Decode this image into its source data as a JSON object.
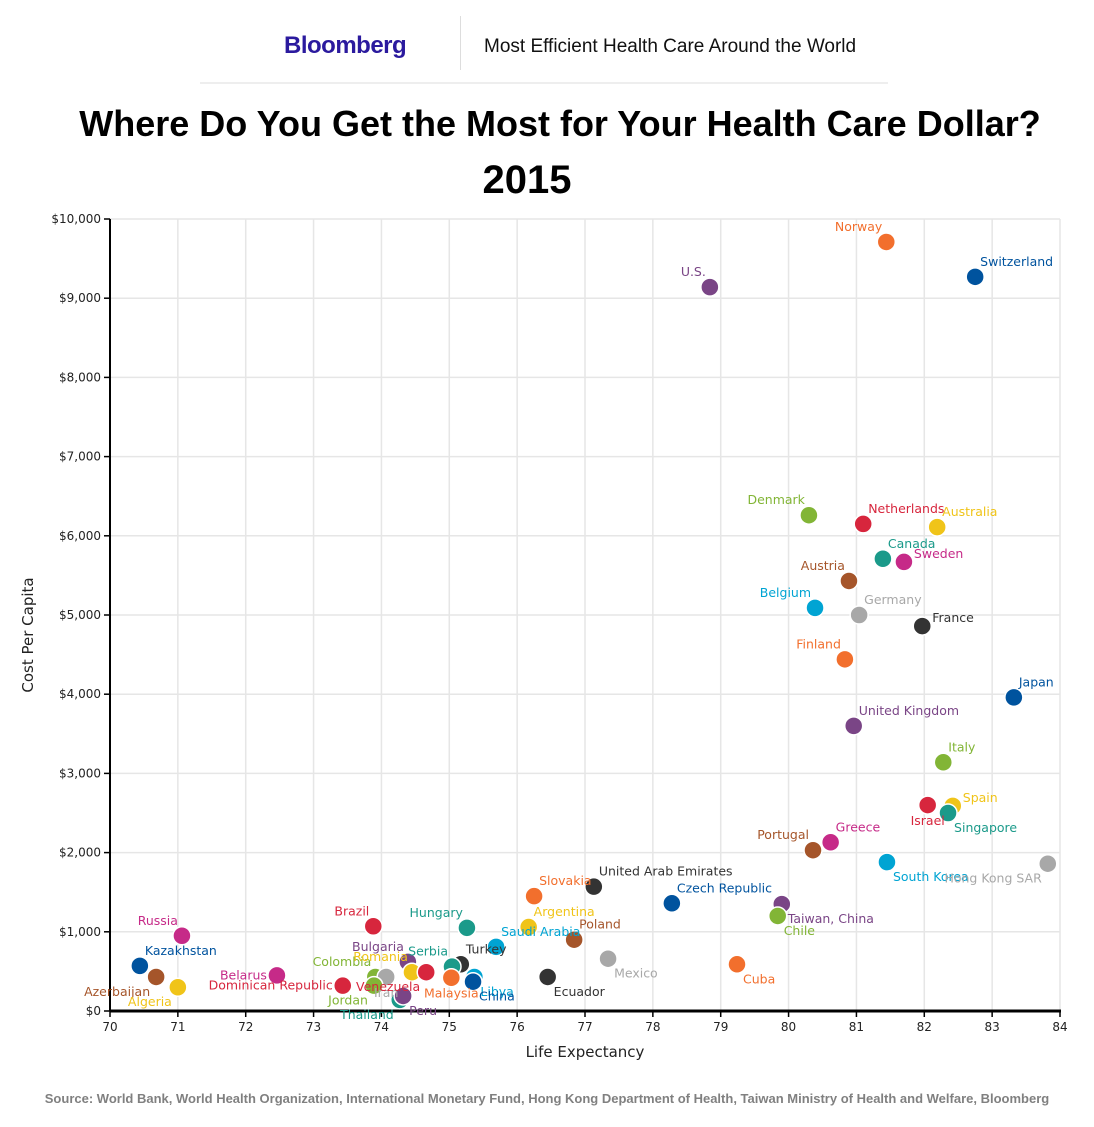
{
  "header": {
    "brand": "Bloomberg",
    "subtitle": "Most Efficient Health Care Around the World"
  },
  "source": "Source: World Bank, World Health Organization, International Monetary Fund, Hong Kong Department of Health, Taiwan Ministry of Health and Welfare, Bloomberg",
  "chart_data": {
    "type": "scatter",
    "title": "Where Do You Get the Most for Your Health Care Dollar?",
    "subtitle": "2015",
    "xlabel": "Life Expectancy",
    "ylabel": "Cost Per Capita",
    "xlim": [
      70,
      84
    ],
    "ylim": [
      0,
      10000
    ],
    "x_ticks": [
      70,
      71,
      72,
      73,
      74,
      75,
      76,
      77,
      78,
      79,
      80,
      81,
      82,
      83,
      84
    ],
    "y_ticks": [
      0,
      1000,
      2000,
      3000,
      4000,
      5000,
      6000,
      7000,
      8000,
      9000,
      10000
    ],
    "y_tick_labels": [
      "$0",
      "$1,000",
      "$2,000",
      "$3,000",
      "$4,000",
      "$5,000",
      "$6,000",
      "$7,000",
      "$8,000",
      "$9,000",
      "$10,000"
    ],
    "grid": true,
    "legend": "none",
    "points": [
      {
        "name": "U.S.",
        "x": 78.84,
        "y": 9140,
        "color": "#7a4586",
        "label_pos": "top-left"
      },
      {
        "name": "Norway",
        "x": 81.44,
        "y": 9710,
        "color": "#f26f2d",
        "label_pos": "top-left"
      },
      {
        "name": "Switzerland",
        "x": 82.75,
        "y": 9270,
        "color": "#00539e",
        "label_pos": "top-right"
      },
      {
        "name": "Denmark",
        "x": 80.3,
        "y": 6260,
        "color": "#82b536",
        "label_pos": "top-left"
      },
      {
        "name": "Netherlands",
        "x": 81.1,
        "y": 6150,
        "color": "#d7263d",
        "label_pos": "top-right"
      },
      {
        "name": "Australia",
        "x": 82.19,
        "y": 6110,
        "color": "#f0c419",
        "label_pos": "top-right"
      },
      {
        "name": "Canada",
        "x": 81.39,
        "y": 5710,
        "color": "#1b9a8a",
        "label_pos": "top-right"
      },
      {
        "name": "Sweden",
        "x": 81.7,
        "y": 5670,
        "color": "#c62a88",
        "label_pos": "right"
      },
      {
        "name": "Austria",
        "x": 80.89,
        "y": 5430,
        "color": "#a5552a",
        "label_pos": "top-left"
      },
      {
        "name": "Belgium",
        "x": 80.39,
        "y": 5090,
        "color": "#00a4d3",
        "label_pos": "top-left"
      },
      {
        "name": "Germany",
        "x": 81.04,
        "y": 5000,
        "color": "#a8a8a8",
        "label_pos": "top-right"
      },
      {
        "name": "France",
        "x": 81.97,
        "y": 4860,
        "color": "#333333",
        "label_pos": "right"
      },
      {
        "name": "Finland",
        "x": 80.83,
        "y": 4440,
        "color": "#f26f2d",
        "label_pos": "top-left"
      },
      {
        "name": "Japan",
        "x": 83.32,
        "y": 3960,
        "color": "#00539e",
        "label_pos": "top-right"
      },
      {
        "name": "United Kingdom",
        "x": 80.96,
        "y": 3600,
        "color": "#7a4586",
        "label_pos": "top-right"
      },
      {
        "name": "Italy",
        "x": 82.28,
        "y": 3140,
        "color": "#82b536",
        "label_pos": "top-right"
      },
      {
        "name": "Spain",
        "x": 82.42,
        "y": 2590,
        "color": "#f0c419",
        "label_pos": "right"
      },
      {
        "name": "Israel",
        "x": 82.05,
        "y": 2600,
        "color": "#d7263d",
        "label_pos": "bottom"
      },
      {
        "name": "Singapore",
        "x": 82.35,
        "y": 2500,
        "color": "#1b9a8a",
        "label_pos": "bottom-right"
      },
      {
        "name": "Greece",
        "x": 80.62,
        "y": 2130,
        "color": "#c62a88",
        "label_pos": "top-right"
      },
      {
        "name": "Portugal",
        "x": 80.36,
        "y": 2030,
        "color": "#a5552a",
        "label_pos": "top-left"
      },
      {
        "name": "South Korea",
        "x": 81.45,
        "y": 1880,
        "color": "#00a4d3",
        "label_pos": "bottom-right"
      },
      {
        "name": "Hong Kong SAR",
        "x": 83.82,
        "y": 1860,
        "color": "#a8a8a8",
        "label_pos": "bottom-left"
      },
      {
        "name": "United Arab Emirates",
        "x": 77.13,
        "y": 1570,
        "color": "#333333",
        "label_pos": "top-right"
      },
      {
        "name": "Slovakia",
        "x": 76.25,
        "y": 1450,
        "color": "#f26f2d",
        "label_pos": "top-right"
      },
      {
        "name": "Czech Republic",
        "x": 78.28,
        "y": 1360,
        "color": "#00539e",
        "label_pos": "top-right"
      },
      {
        "name": "Taiwan, China",
        "x": 79.9,
        "y": 1350,
        "color": "#7a4586",
        "label_pos": "bottom-right"
      },
      {
        "name": "Chile",
        "x": 79.84,
        "y": 1200,
        "color": "#82b536",
        "label_pos": "bottom-right"
      },
      {
        "name": "Argentina",
        "x": 76.17,
        "y": 1060,
        "color": "#f0c419",
        "label_pos": "top-right"
      },
      {
        "name": "Hungary",
        "x": 75.26,
        "y": 1050,
        "color": "#1b9a8a",
        "label_pos": "top-left"
      },
      {
        "name": "Brazil",
        "x": 73.88,
        "y": 1070,
        "color": "#d7263d",
        "label_pos": "top-left"
      },
      {
        "name": "Russia",
        "x": 71.06,
        "y": 950,
        "color": "#c62a88",
        "label_pos": "top-left"
      },
      {
        "name": "Poland",
        "x": 76.84,
        "y": 900,
        "color": "#a5552a",
        "label_pos": "top-right"
      },
      {
        "name": "Saudi Arabia",
        "x": 75.69,
        "y": 810,
        "color": "#00a4d3",
        "label_pos": "top-right"
      },
      {
        "name": "Mexico",
        "x": 77.34,
        "y": 660,
        "color": "#a8a8a8",
        "label_pos": "bottom-right"
      },
      {
        "name": "Turkey",
        "x": 75.17,
        "y": 590,
        "color": "#333333",
        "label_pos": "top-right"
      },
      {
        "name": "Cuba",
        "x": 79.24,
        "y": 590,
        "color": "#f26f2d",
        "label_pos": "bottom-right"
      },
      {
        "name": "Kazakhstan",
        "x": 70.44,
        "y": 570,
        "color": "#00539e",
        "label_pos": "top-right"
      },
      {
        "name": "Ecuador",
        "x": 76.45,
        "y": 430,
        "color": "#333333",
        "label_pos": "bottom-right"
      },
      {
        "name": "Azerbaijan",
        "x": 70.68,
        "y": 430,
        "color": "#a5552a",
        "label_pos": "bottom-left"
      },
      {
        "name": "Algeria",
        "x": 71.0,
        "y": 300,
        "color": "#f0c419",
        "label_pos": "bottom-left"
      },
      {
        "name": "Belarus",
        "x": 72.46,
        "y": 450,
        "color": "#c62a88",
        "label_pos": "left"
      },
      {
        "name": "Dominican Republic",
        "x": 73.43,
        "y": 320,
        "color": "#d7263d",
        "label_pos": "left"
      },
      {
        "name": "Bulgaria",
        "x": 74.39,
        "y": 620,
        "color": "#7a4586",
        "label_pos": "top-left"
      },
      {
        "name": "Serbia",
        "x": 75.04,
        "y": 560,
        "color": "#1b9a8a",
        "label_pos": "top-left"
      },
      {
        "name": "Colombia",
        "x": 73.91,
        "y": 430,
        "color": "#82b536",
        "label_pos": "top-left"
      },
      {
        "name": "Romania",
        "x": 74.45,
        "y": 490,
        "color": "#f0c419",
        "label_pos": "top-left"
      },
      {
        "name": "Iran",
        "x": 74.07,
        "y": 430,
        "color": "#a8a8a8",
        "label_pos": "bottom"
      },
      {
        "name": "Venezuela",
        "x": 74.66,
        "y": 490,
        "color": "#d7263d",
        "label_pos": "bottom-left"
      },
      {
        "name": "Jordan",
        "x": 73.89,
        "y": 320,
        "color": "#82b536",
        "label_pos": "bottom-left"
      },
      {
        "name": "Thailand",
        "x": 74.27,
        "y": 140,
        "color": "#1b9a8a",
        "label_pos": "bottom-left"
      },
      {
        "name": "Peru",
        "x": 74.32,
        "y": 190,
        "color": "#7a4586",
        "label_pos": "bottom-right"
      },
      {
        "name": "Malaysia",
        "x": 75.03,
        "y": 420,
        "color": "#f26f2d",
        "label_pos": "bottom"
      },
      {
        "name": "Libya",
        "x": 75.37,
        "y": 430,
        "color": "#00a4d3",
        "label_pos": "bottom-right"
      },
      {
        "name": "China",
        "x": 75.35,
        "y": 370,
        "color": "#00539e",
        "label_pos": "bottom-right"
      }
    ]
  }
}
